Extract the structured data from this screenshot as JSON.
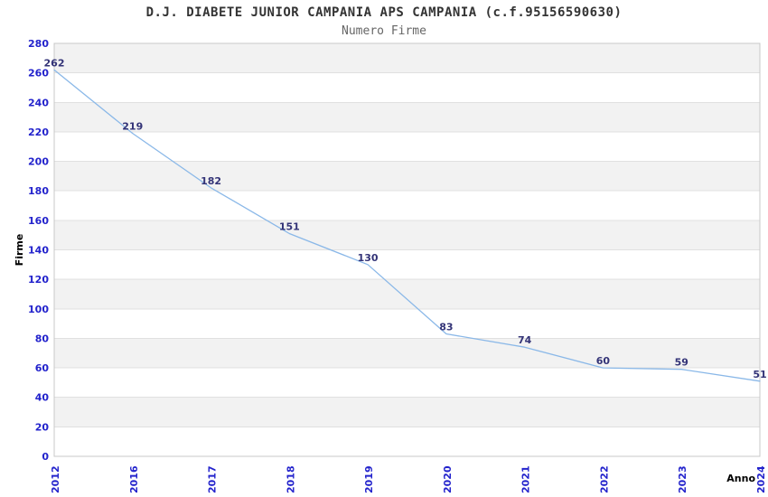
{
  "page": {
    "title": "D.J. DIABETE JUNIOR CAMPANIA APS CAMPANIA (c.f.95156590630)",
    "subtitle": "Numero Firme"
  },
  "chart_data": {
    "type": "line",
    "title": "D.J. DIABETE JUNIOR CAMPANIA APS CAMPANIA (c.f.95156590630)",
    "subtitle": "Numero Firme",
    "categories": [
      "2012",
      "2016",
      "2017",
      "2018",
      "2019",
      "2020",
      "2021",
      "2022",
      "2023",
      "2024"
    ],
    "values": [
      262,
      219,
      182,
      151,
      130,
      83,
      74,
      60,
      59,
      51
    ],
    "xlabel": "Anno",
    "ylabel": "Firme",
    "ylim": [
      0,
      280
    ],
    "ytick_step": 20,
    "grid": "horizontal-only",
    "legend": "none",
    "band_pattern": "alternating gray/white horizontal bands, white at bottom",
    "colors": {
      "line": "#8ab8e8",
      "tick_label": "#2323cc",
      "point_label": "#333377",
      "band_gray": "#f2f2f2",
      "gridline": "#e0e0e0",
      "border": "#c8c8c8",
      "title": "#333333",
      "subtitle": "#666666",
      "axis_label": "#000000",
      "background": "#ffffff"
    }
  }
}
